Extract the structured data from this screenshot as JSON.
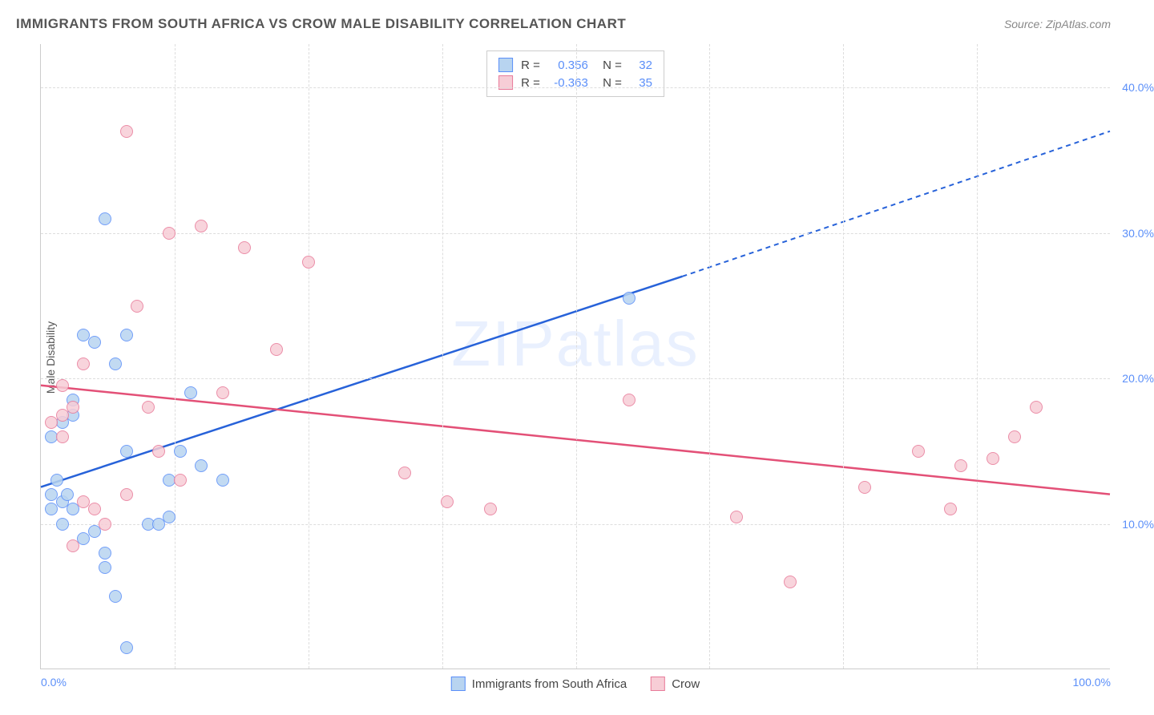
{
  "header": {
    "title": "IMMIGRANTS FROM SOUTH AFRICA VS CROW MALE DISABILITY CORRELATION CHART",
    "source": "Source: ZipAtlas.com"
  },
  "watermark": "ZIPatlas",
  "y_axis": {
    "label": "Male Disability",
    "ticks": [
      {
        "value": 10.0,
        "label": "10.0%"
      },
      {
        "value": 20.0,
        "label": "20.0%"
      },
      {
        "value": 30.0,
        "label": "30.0%"
      },
      {
        "value": 40.0,
        "label": "40.0%"
      }
    ],
    "min": 0,
    "max": 43
  },
  "x_axis": {
    "ticks": [
      {
        "value": 0,
        "label": "0.0%",
        "align": "left"
      },
      {
        "value": 100,
        "label": "100.0%",
        "align": "right"
      }
    ],
    "grid_values": [
      12.5,
      25,
      37.5,
      50,
      62.5,
      75,
      87.5
    ],
    "min": 0,
    "max": 100
  },
  "series": [
    {
      "id": "sa",
      "label": "Immigrants from South Africa",
      "fill_color": "#b8d4f0",
      "stroke_color": "#5b8ff9",
      "r_value": "0.356",
      "n_value": "32",
      "trend": {
        "x1": 0,
        "y1": 12.5,
        "x2": 60,
        "y2": 27.0,
        "x2_ext": 100,
        "y2_ext": 37.0,
        "color": "#2762d9"
      },
      "points": [
        {
          "x": 1,
          "y": 12
        },
        {
          "x": 1.5,
          "y": 13
        },
        {
          "x": 1,
          "y": 11
        },
        {
          "x": 2,
          "y": 11.5
        },
        {
          "x": 2.5,
          "y": 12
        },
        {
          "x": 1,
          "y": 16
        },
        {
          "x": 2,
          "y": 17
        },
        {
          "x": 3,
          "y": 17.5
        },
        {
          "x": 4,
          "y": 23
        },
        {
          "x": 5,
          "y": 22.5
        },
        {
          "x": 6,
          "y": 31
        },
        {
          "x": 7,
          "y": 21
        },
        {
          "x": 8,
          "y": 23
        },
        {
          "x": 4,
          "y": 9
        },
        {
          "x": 5,
          "y": 9.5
        },
        {
          "x": 6,
          "y": 8
        },
        {
          "x": 3,
          "y": 18.5
        },
        {
          "x": 8,
          "y": 15
        },
        {
          "x": 10,
          "y": 10
        },
        {
          "x": 12,
          "y": 13
        },
        {
          "x": 6,
          "y": 7
        },
        {
          "x": 7,
          "y": 5
        },
        {
          "x": 8,
          "y": 1.5
        },
        {
          "x": 14,
          "y": 19
        },
        {
          "x": 12,
          "y": 10.5
        },
        {
          "x": 13,
          "y": 15
        },
        {
          "x": 15,
          "y": 14
        },
        {
          "x": 17,
          "y": 13
        },
        {
          "x": 11,
          "y": 10
        },
        {
          "x": 55,
          "y": 25.5
        },
        {
          "x": 2,
          "y": 10
        },
        {
          "x": 3,
          "y": 11
        }
      ]
    },
    {
      "id": "crow",
      "label": "Crow",
      "fill_color": "#f7cdd6",
      "stroke_color": "#e87b9a",
      "r_value": "-0.363",
      "n_value": "35",
      "trend": {
        "x1": 0,
        "y1": 19.5,
        "x2": 100,
        "y2": 12.0,
        "color": "#e35077"
      },
      "points": [
        {
          "x": 1,
          "y": 17
        },
        {
          "x": 2,
          "y": 17.5
        },
        {
          "x": 2,
          "y": 16
        },
        {
          "x": 3,
          "y": 18
        },
        {
          "x": 4,
          "y": 21
        },
        {
          "x": 2,
          "y": 19.5
        },
        {
          "x": 3,
          "y": 8.5
        },
        {
          "x": 5,
          "y": 11
        },
        {
          "x": 8,
          "y": 37
        },
        {
          "x": 9,
          "y": 25
        },
        {
          "x": 10,
          "y": 18
        },
        {
          "x": 12,
          "y": 30
        },
        {
          "x": 11,
          "y": 15
        },
        {
          "x": 13,
          "y": 13
        },
        {
          "x": 8,
          "y": 12
        },
        {
          "x": 15,
          "y": 30.5
        },
        {
          "x": 17,
          "y": 19
        },
        {
          "x": 19,
          "y": 29
        },
        {
          "x": 22,
          "y": 22
        },
        {
          "x": 25,
          "y": 28
        },
        {
          "x": 34,
          "y": 13.5
        },
        {
          "x": 38,
          "y": 11.5
        },
        {
          "x": 42,
          "y": 11
        },
        {
          "x": 55,
          "y": 18.5
        },
        {
          "x": 65,
          "y": 10.5
        },
        {
          "x": 70,
          "y": 6
        },
        {
          "x": 77,
          "y": 12.5
        },
        {
          "x": 82,
          "y": 15
        },
        {
          "x": 85,
          "y": 11
        },
        {
          "x": 86,
          "y": 14
        },
        {
          "x": 89,
          "y": 14.5
        },
        {
          "x": 91,
          "y": 16
        },
        {
          "x": 93,
          "y": 18
        },
        {
          "x": 6,
          "y": 10
        },
        {
          "x": 4,
          "y": 11.5
        }
      ]
    }
  ],
  "colors": {
    "axis_text": "#5b8ff9",
    "grid": "#dddddd",
    "border": "#cccccc",
    "title": "#555555",
    "source": "#888888",
    "background": "#ffffff"
  },
  "fonts": {
    "title_size": 17,
    "label_size": 14,
    "legend_size": 15,
    "watermark_size": 80
  }
}
